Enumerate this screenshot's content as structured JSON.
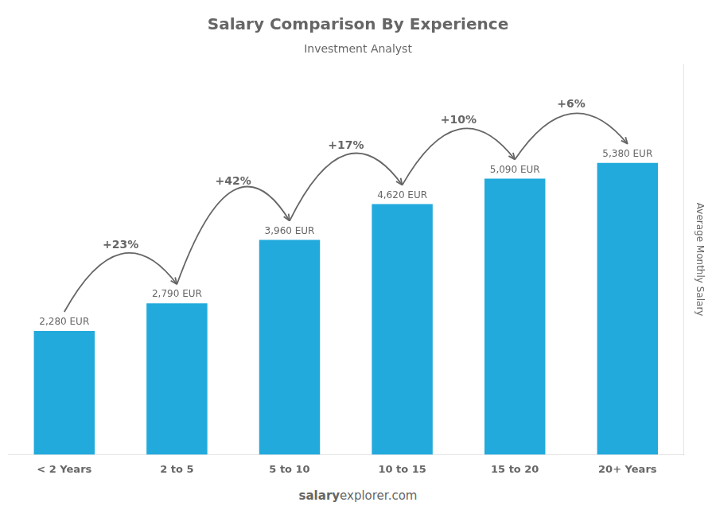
{
  "chart_data": {
    "type": "bar",
    "title": "Salary Comparison By Experience",
    "subtitle": "Investment Analyst",
    "ylabel": "Average Monthly Salary",
    "categories": [
      "< 2 Years",
      "2 to 5",
      "5 to 10",
      "10 to 15",
      "15 to 20",
      "20+ Years"
    ],
    "values": [
      2280,
      2790,
      3960,
      4620,
      5090,
      5380
    ],
    "value_labels": [
      "2,280 EUR",
      "2,790 EUR",
      "3,960 EUR",
      "4,620 EUR",
      "5,090 EUR",
      "5,380 EUR"
    ],
    "data_labels": true,
    "color": "#22aadd",
    "ylim": [
      0,
      7200
    ],
    "grid": false,
    "tick_labels": "x",
    "annotations": [
      null,
      "+23%",
      "+42%",
      "+17%",
      "+10%",
      "+6%"
    ],
    "footer": [
      "salary",
      "explorer.com"
    ]
  }
}
